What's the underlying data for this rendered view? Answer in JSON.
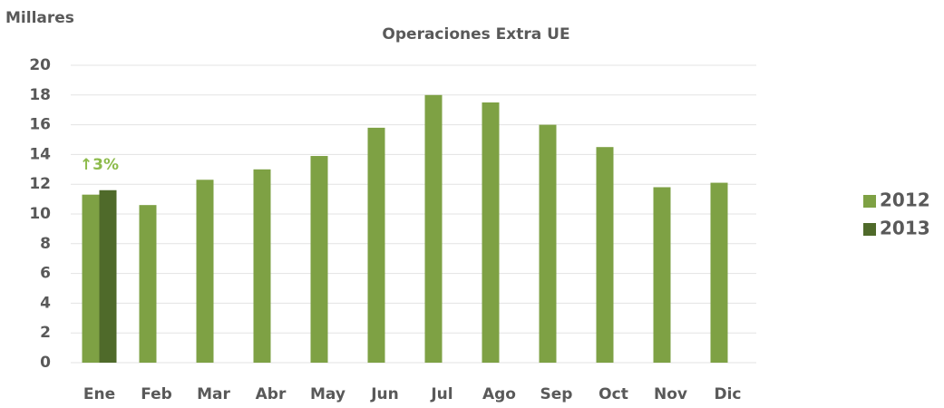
{
  "chart_data": {
    "type": "bar",
    "title": "Operaciones Extra UE",
    "y_label": "Millares",
    "annotation": {
      "text": "↑3%",
      "category": 0,
      "color": "#8dbb4c"
    },
    "categories": [
      "Ene",
      "Feb",
      "Mar",
      "Abr",
      "May",
      "Jun",
      "Jul",
      "Ago",
      "Sep",
      "Oct",
      "Nov",
      "Dic"
    ],
    "series": [
      {
        "name": "2012",
        "color": "#7ea144",
        "values": [
          11.3,
          10.6,
          12.3,
          13.0,
          13.9,
          15.8,
          18.0,
          17.5,
          16.0,
          14.5,
          11.8,
          12.1
        ]
      },
      {
        "name": "2013",
        "color": "#4f6a2a",
        "values": [
          11.6,
          null,
          null,
          null,
          null,
          null,
          null,
          null,
          null,
          null,
          null,
          null
        ]
      }
    ],
    "ylim": [
      0,
      20
    ],
    "yticks": [
      0,
      2,
      4,
      6,
      8,
      10,
      12,
      14,
      16,
      18,
      20
    ],
    "grid": true,
    "legend": "right"
  }
}
